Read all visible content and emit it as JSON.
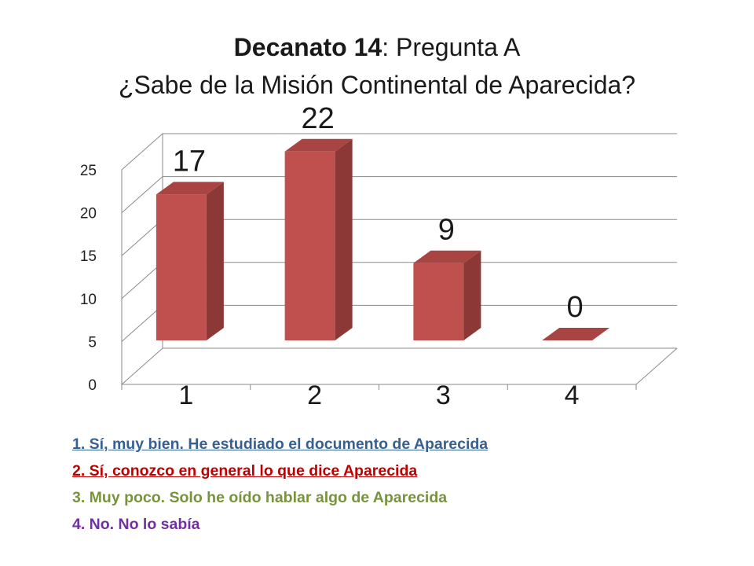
{
  "chart_data": {
    "type": "bar",
    "title_bold": "Decanato 14",
    "title_rest": ": Pregunta A",
    "subtitle": "¿Sabe de la Misión Continental de Aparecida?",
    "categories": [
      "1",
      "2",
      "3",
      "4"
    ],
    "values": [
      17,
      22,
      9,
      0
    ],
    "data_labels": [
      "17",
      "22",
      "9",
      "0"
    ],
    "yticks": [
      "0",
      "5",
      "10",
      "15",
      "20",
      "25"
    ],
    "ylim": [
      0,
      25
    ],
    "grid": true,
    "style": "3d",
    "bar_color": "#c0504d",
    "bar_side_color": "#8c3836",
    "bar_top_color": "#a84442"
  },
  "legend": [
    {
      "text": "1. Sí, muy bien. He estudiado el documento de Aparecida",
      "color": "#376092"
    },
    {
      "text": "2. Sí, conozco en general lo que dice Aparecida",
      "color": "#c00000"
    },
    {
      "text": "3. Muy poco. Solo he oído hablar algo de Aparecida",
      "color": "#77933c"
    },
    {
      "text": "4. No. No lo sabía",
      "color": "#7030a0"
    }
  ]
}
